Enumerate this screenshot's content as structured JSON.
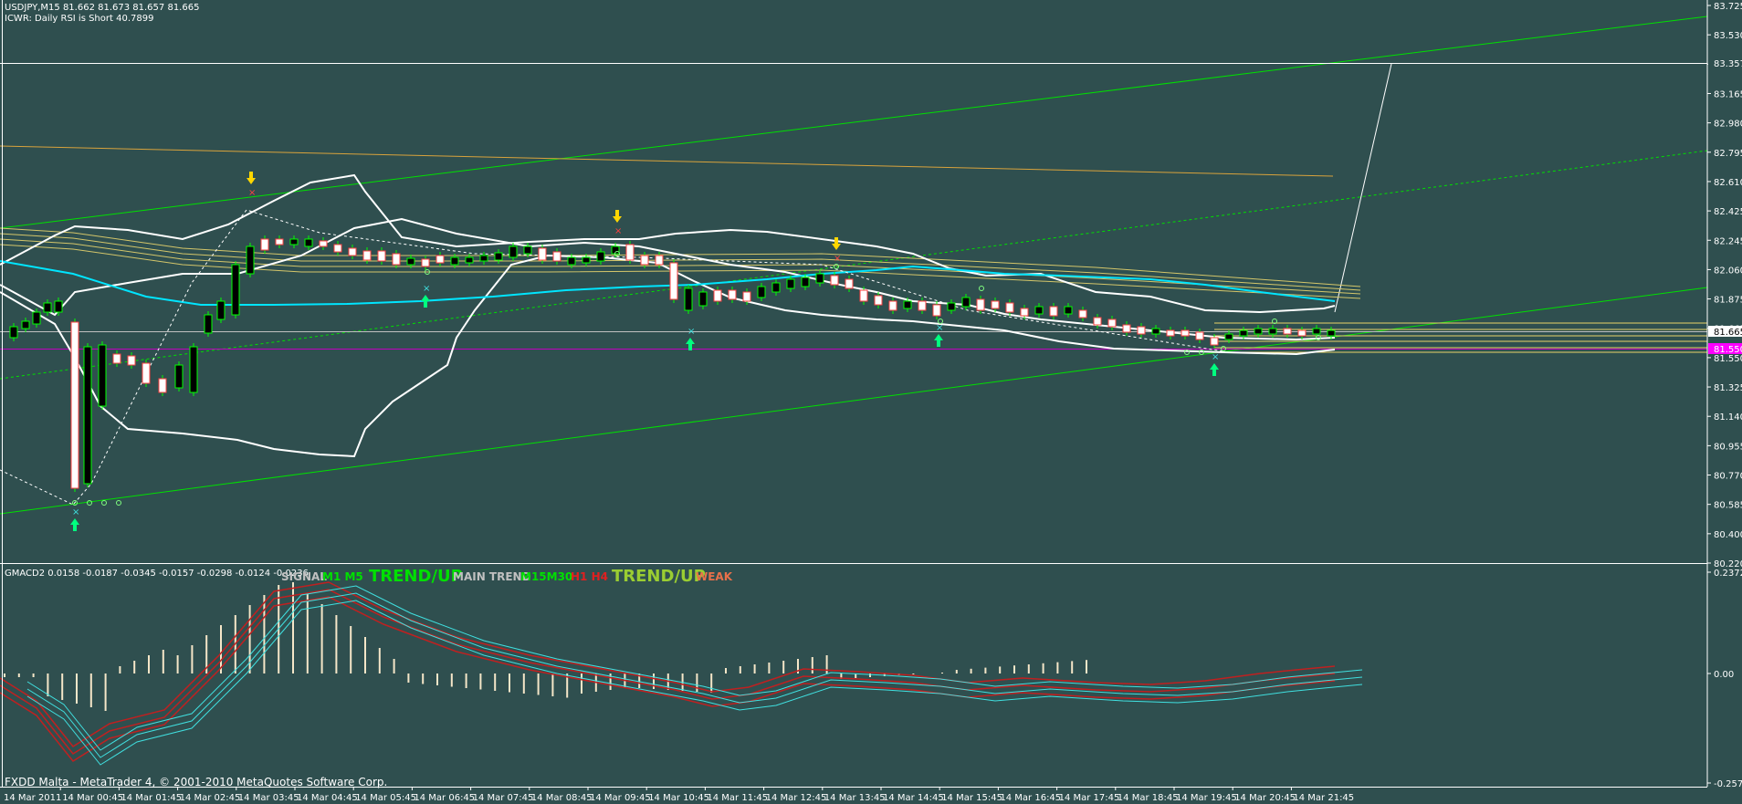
{
  "header": {
    "symbol_line": "USDJPY,M15  81.662 81.673 81.657 81.665",
    "rsi_line": "ICWR: Daily RSI is Short 40.7899"
  },
  "indicator": {
    "gmacd_line": "GMACD2 0.0158 -0.0187 -0.0345 -0.0157 -0.0298 -0.0124 -0.0236",
    "signals": {
      "signal": "SIGNAL",
      "m1m5": "M1 M5",
      "trend_up_1": "TREND/UP",
      "main_trend": "MAIN TREND",
      "m15m30": "M15M30",
      "h1h4": "H1 H4",
      "trend_up_2": "TREND/UP",
      "weak": "WEAK"
    },
    "y_labels": [
      "0.2372",
      "0.00",
      "-0.2571"
    ]
  },
  "price_axis": {
    "labels": [
      "83.725",
      "83.530",
      "83.357",
      "83.165",
      "82.980",
      "82.795",
      "82.610",
      "82.425",
      "82.245",
      "82.060",
      "81.875",
      "81.665",
      "81.550",
      "81.325",
      "81.140",
      "80.955",
      "80.770",
      "80.585",
      "80.400",
      "80.220"
    ],
    "current_price": "81.665",
    "purple_level": "81.550",
    "resistance_level": "83.357"
  },
  "time_axis": {
    "labels": [
      "14 Mar 2011",
      "14 Mar 00:45",
      "14 Mar 01:45",
      "14 Mar 02:45",
      "14 Mar 03:45",
      "14 Mar 04:45",
      "14 Mar 05:45",
      "14 Mar 06:45",
      "14 Mar 07:45",
      "14 Mar 08:45",
      "14 Mar 09:45",
      "14 Mar 10:45",
      "14 Mar 11:45",
      "14 Mar 12:45",
      "14 Mar 13:45",
      "14 Mar 14:45",
      "14 Mar 15:45",
      "14 Mar 16:45",
      "14 Mar 17:45",
      "14 Mar 18:45",
      "14 Mar 19:45",
      "14 Mar 20:45",
      "14 Mar 21:45"
    ]
  },
  "footer": {
    "text": "FXDD Malta - MetaTrader 4, © 2001-2010 MetaQuotes Software Corp."
  },
  "colors": {
    "background": "#2f4f4f",
    "bull_candle": "#000000",
    "bear_candle": "#ffffff",
    "wick": "#00ff00",
    "bands": "#ffffff",
    "ema_cyan": "#00e5ff",
    "ma_yellow": "#d4c66a",
    "trend_green": "#00e000",
    "pivot_orange": "#d9a33c",
    "current_price": "#c0c0c0",
    "purple_line": "#c000c0",
    "macd_red": "#c02020",
    "macd_cyan": "#40e0e0",
    "histogram": "#f5e6c8",
    "arrow_up": "#00ff7f",
    "arrow_down": "#ffd700"
  }
}
